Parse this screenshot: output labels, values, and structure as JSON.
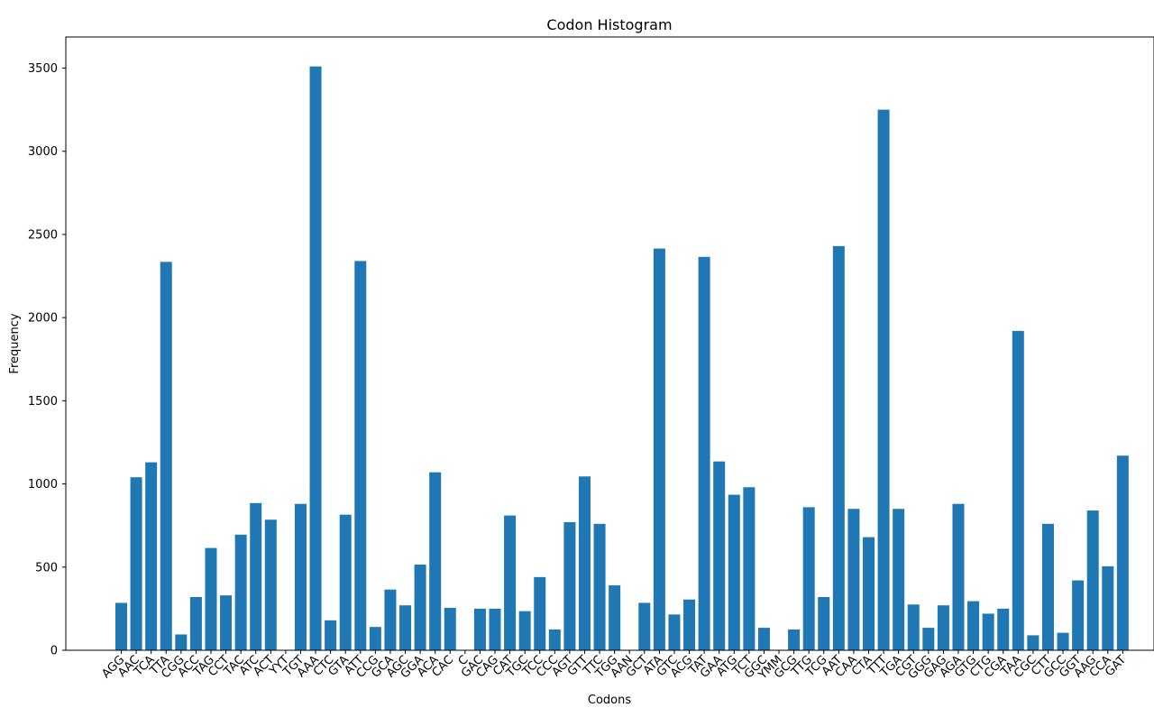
{
  "chart_data": {
    "type": "bar",
    "title": "Codon Histogram",
    "xlabel": "Codons",
    "ylabel": "Frequency",
    "ylim": [
      0,
      3680
    ],
    "yticks": [
      0,
      500,
      1000,
      1500,
      2000,
      2500,
      3000,
      3500
    ],
    "bar_color": "#1f77b4",
    "grid": false,
    "categories": [
      "AGG",
      "AAC",
      "TCA",
      "TTA",
      "CGG",
      "ACC",
      "TAG",
      "CCT",
      "TAC",
      "ATC",
      "ACT",
      "YYT",
      "TGT",
      "AAA",
      "CTC",
      "GTA",
      "ATT",
      "CCG",
      "GCA",
      "AGC",
      "GGA",
      "ACA",
      "CAC",
      "C",
      "GAC",
      "CAG",
      "CAT",
      "TGC",
      "TCC",
      "CCC",
      "AGT",
      "GTT",
      "TTC",
      "TGG",
      "AAN",
      "GCT",
      "ATA",
      "GTC",
      "ACG",
      "TAT",
      "GAA",
      "ATG",
      "TCT",
      "GGC",
      "YMM",
      "GCG",
      "TTG",
      "TCG",
      "AAT",
      "CAA",
      "CTA",
      "TTT",
      "TGA",
      "CGT",
      "GGG",
      "GAG",
      "AGA",
      "GTG",
      "CTG",
      "CGA",
      "TAA",
      "CGC",
      "CTT",
      "GCC",
      "GGT",
      "AAG",
      "CCA",
      "GAT"
    ],
    "values": [
      285,
      1040,
      1130,
      2335,
      95,
      320,
      615,
      330,
      695,
      885,
      785,
      0,
      880,
      3510,
      180,
      815,
      2340,
      140,
      365,
      270,
      515,
      1070,
      255,
      0,
      250,
      250,
      810,
      235,
      440,
      125,
      770,
      1045,
      760,
      390,
      0,
      285,
      2415,
      215,
      305,
      2365,
      1135,
      935,
      980,
      135,
      0,
      125,
      860,
      320,
      2430,
      850,
      680,
      3250,
      850,
      275,
      135,
      270,
      880,
      295,
      220,
      250,
      1920,
      90,
      760,
      105,
      420,
      840,
      505,
      1170
    ]
  }
}
